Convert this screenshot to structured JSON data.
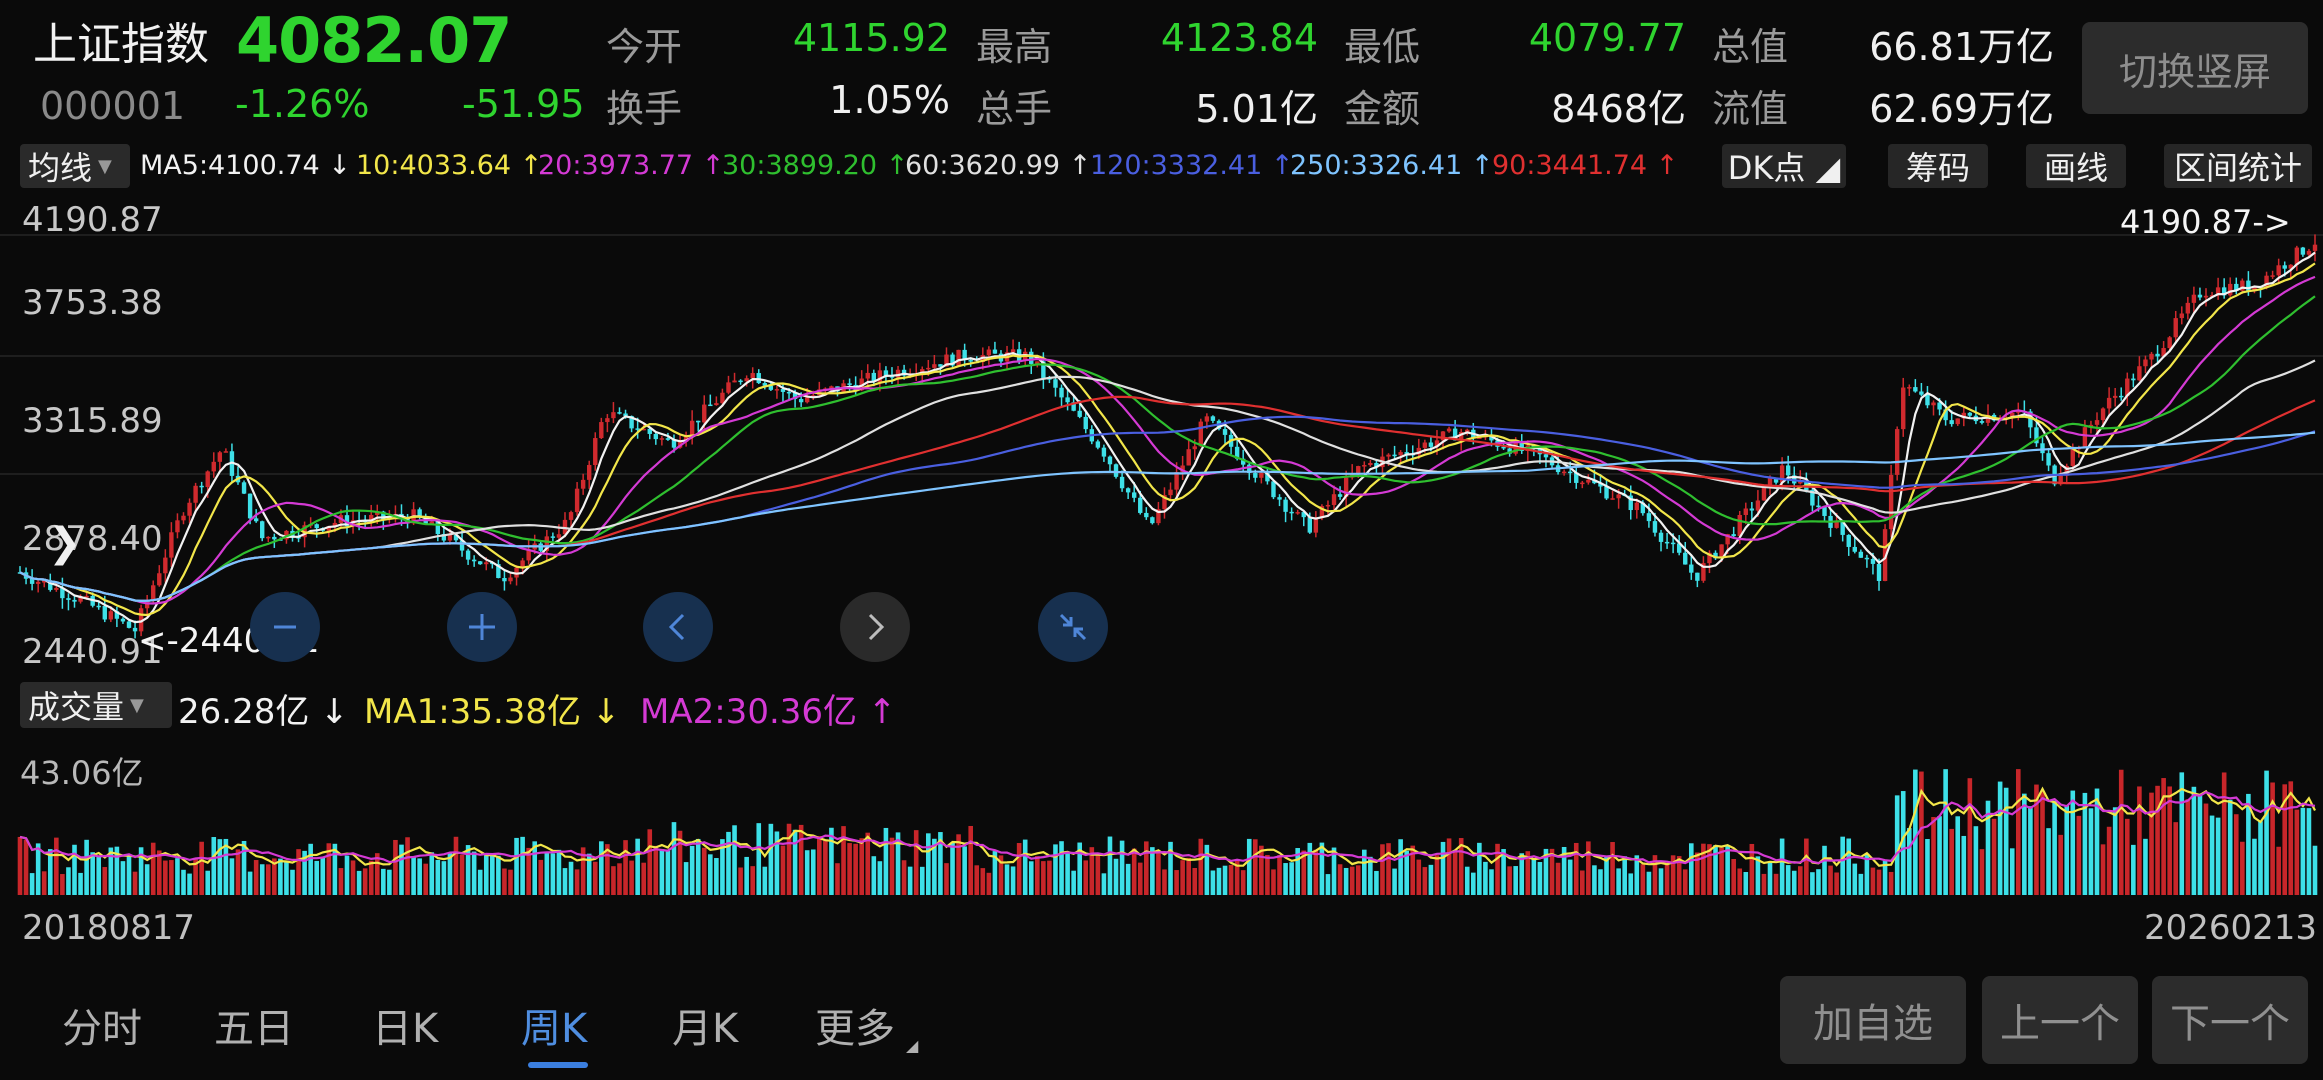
{
  "header": {
    "name": "上证指数",
    "price": "4082.07",
    "code": "000001",
    "change_pct": "-1.26%",
    "change": "-51.95",
    "stats": [
      {
        "label": "今开",
        "value": "4115.92",
        "color": "green"
      },
      {
        "label": "最高",
        "value": "4123.84",
        "color": "green"
      },
      {
        "label": "最低",
        "value": "4079.77",
        "color": "green"
      },
      {
        "label": "总值",
        "value": "66.81万亿",
        "color": "white"
      },
      {
        "label": "换手",
        "value": "1.05%",
        "color": "white"
      },
      {
        "label": "总手",
        "value": "5.01亿",
        "color": "white"
      },
      {
        "label": "金额",
        "value": "8468亿",
        "color": "white"
      },
      {
        "label": "流值",
        "value": "62.69万亿",
        "color": "white"
      }
    ],
    "portrait_button": "切换竖屏"
  },
  "ma_bar": {
    "selector": "均线",
    "items": [
      {
        "text": "MA5:4100.74 ↓",
        "color": "#f2f2f2"
      },
      {
        "text": "10:4033.64 ↑",
        "color": "#f2e64a"
      },
      {
        "text": "20:3973.77 ↑",
        "color": "#d43ad4"
      },
      {
        "text": "30:3899.20 ↑",
        "color": "#2fbf2f"
      },
      {
        "text": "60:3620.99 ↑",
        "color": "#e0e0e0"
      },
      {
        "text": "120:3332.41 ↑",
        "color": "#4a5fe0"
      },
      {
        "text": "250:3326.41 ↑",
        "color": "#7fc4ff"
      },
      {
        "text": "90:3441.74 ↑",
        "color": "#e03030"
      }
    ],
    "tools": [
      "DK点",
      "筹码",
      "画线",
      "区间统计"
    ]
  },
  "kline": {
    "y_labels": [
      "4190.87",
      "3753.38",
      "3315.89",
      "2878.40",
      "2440.91"
    ],
    "high_mark": "4190.87->",
    "low_mark": "<-2440.91"
  },
  "volume": {
    "selector": "成交量",
    "value": "26.28亿 ↓",
    "ma1": "MA1:35.38亿 ↓",
    "ma2": "MA2:30.36亿 ↑",
    "max_label": "43.06亿",
    "colors": {
      "up": "#c8262a",
      "down": "#3de0e8",
      "ma1": "#f2e64a",
      "ma2": "#d43ad4"
    }
  },
  "dates": {
    "start": "20180817",
    "end": "20260213"
  },
  "tabs": [
    "分时",
    "五日",
    "日K",
    "周K",
    "月K",
    "更多"
  ],
  "active_tab": "周K",
  "bottom_buttons": [
    "加自选",
    "上一个",
    "下一个"
  ],
  "chart_data": {
    "type": "candlestick",
    "x_range": [
      "20180817",
      "20260213"
    ],
    "ylim": [
      2440.91,
      4190.87
    ],
    "close_path": [
      [
        "20180817",
        2720
      ],
      [
        "20181101",
        2600
      ],
      [
        "20190101",
        2480
      ],
      [
        "20190301",
        2990
      ],
      [
        "20190415",
        3230
      ],
      [
        "20190601",
        2860
      ],
      [
        "20190901",
        2930
      ],
      [
        "20191201",
        2950
      ],
      [
        "20200201",
        2800
      ],
      [
        "20200315",
        2700
      ],
      [
        "20200601",
        2930
      ],
      [
        "20200715",
        3380
      ],
      [
        "20201001",
        3250
      ],
      [
        "20210101",
        3550
      ],
      [
        "20210301",
        3430
      ],
      [
        "20210701",
        3550
      ],
      [
        "20210915",
        3610
      ],
      [
        "20211201",
        3610
      ],
      [
        "20220301",
        3220
      ],
      [
        "20220425",
        2900
      ],
      [
        "20220701",
        3350
      ],
      [
        "20221031",
        2900
      ],
      [
        "20230101",
        3150
      ],
      [
        "20230501",
        3300
      ],
      [
        "20230801",
        3200
      ],
      [
        "20231201",
        2980
      ],
      [
        "20240205",
        2700
      ],
      [
        "20240520",
        3150
      ],
      [
        "20240913",
        2700
      ],
      [
        "20241008",
        3500
      ],
      [
        "20241201",
        3350
      ],
      [
        "20250301",
        3380
      ],
      [
        "20250407",
        3100
      ],
      [
        "20250601",
        3380
      ],
      [
        "20250801",
        3600
      ],
      [
        "20251001",
        3880
      ],
      [
        "20251201",
        3900
      ],
      [
        "20260213",
        4082
      ]
    ]
  }
}
